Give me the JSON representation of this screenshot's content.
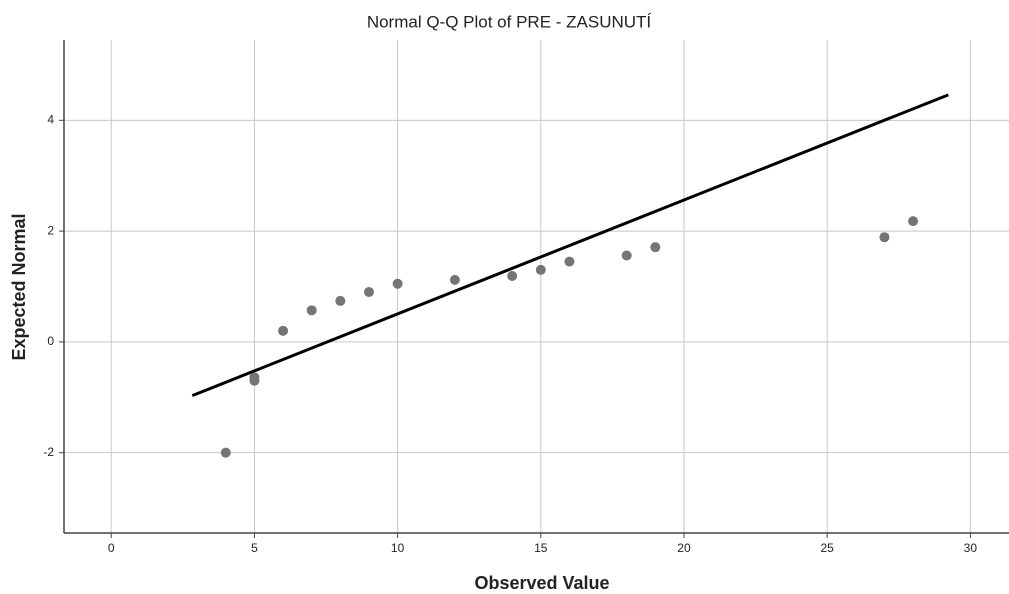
{
  "chart_data": {
    "type": "scatter",
    "title": "Normal Q-Q Plot of PRE - ZASUNUTÍ",
    "xlabel": "Observed Value",
    "ylabel": "Expected Normal",
    "x": [
      4,
      5,
      5,
      6,
      7,
      8,
      9,
      10,
      12,
      14,
      15,
      16,
      18,
      19,
      27,
      28
    ],
    "values": [
      -2.0,
      -0.64,
      -0.7,
      0.2,
      0.57,
      0.74,
      0.9,
      1.05,
      1.12,
      1.19,
      1.3,
      1.45,
      1.56,
      1.71,
      1.89,
      2.18
    ],
    "color": "#757575",
    "reference_line": {
      "x": [
        2.83,
        29.23
      ],
      "y": [
        -0.97,
        4.46
      ],
      "color": "#000000"
    },
    "xlim": [
      -1.65,
      31.35
    ],
    "xticks": [
      0,
      5,
      10,
      15,
      20,
      25,
      30
    ],
    "ylim": [
      -3.45,
      5.45
    ],
    "yticks": [
      -2,
      0,
      2,
      4
    ],
    "grid": true
  }
}
